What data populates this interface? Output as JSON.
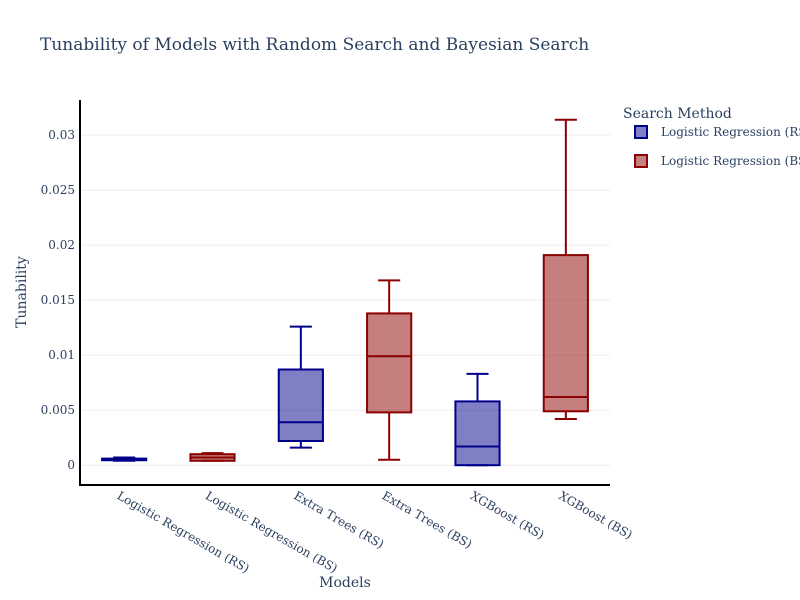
{
  "chart_data": {
    "type": "box",
    "title": "Tunability of Models with Random Search and Bayesian Search",
    "xlabel": "Models",
    "ylabel": "Tunability",
    "ylim": [
      -0.0018,
      0.0332
    ],
    "yticks": [
      0,
      0.005,
      0.01,
      0.015,
      0.02,
      0.025,
      0.03
    ],
    "ytick_labels": [
      "0",
      "0.005",
      "0.01",
      "0.015",
      "0.02",
      "0.025",
      "0.03"
    ],
    "grid": true,
    "legend": {
      "title": "Search Method",
      "placement": "top-right",
      "entries": [
        {
          "label": "Logistic Regression (RS)",
          "color": "#00008b"
        },
        {
          "label": "Logistic Regression (BS)",
          "color": "#8b0000"
        }
      ]
    },
    "series": [
      {
        "color": "#00008b",
        "fill": "rgba(0,0,139,0.5)"
      },
      {
        "color": "#8b0000",
        "fill": "rgba(139,0,0,0.5)"
      }
    ],
    "categories": [
      "Logistic Regression (RS)",
      "Logistic Regression (BS)",
      "Extra Trees (RS)",
      "Extra Trees (BS)",
      "XGBoost (RS)",
      "XGBoost (BS)"
    ],
    "boxes": [
      {
        "category": "Logistic Regression (RS)",
        "series": 0,
        "min": 0.0004,
        "q1": 0.00045,
        "median": 0.0005,
        "q3": 0.0006,
        "max": 0.0007
      },
      {
        "category": "Logistic Regression (BS)",
        "series": 1,
        "min": 0.0004,
        "q1": 0.0004,
        "median": 0.0007,
        "q3": 0.001,
        "max": 0.0011
      },
      {
        "category": "Extra Trees (RS)",
        "series": 0,
        "min": 0.0016,
        "q1": 0.0022,
        "median": 0.0039,
        "q3": 0.0087,
        "max": 0.0126
      },
      {
        "category": "Extra Trees (BS)",
        "series": 1,
        "min": 0.0005,
        "q1": 0.0048,
        "median": 0.0099,
        "q3": 0.0138,
        "max": 0.0168
      },
      {
        "category": "XGBoost (RS)",
        "series": 0,
        "min": 0.0,
        "q1": 0.0,
        "median": 0.0017,
        "q3": 0.0058,
        "max": 0.0083
      },
      {
        "category": "XGBoost (BS)",
        "series": 1,
        "min": 0.0042,
        "q1": 0.0049,
        "median": 0.0062,
        "q3": 0.0191,
        "max": 0.0314
      }
    ]
  }
}
